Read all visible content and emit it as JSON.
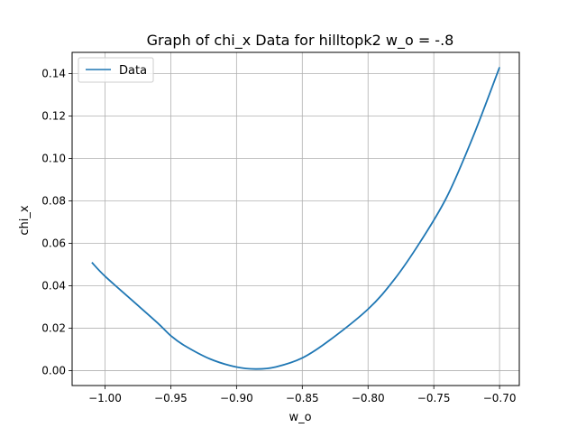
{
  "chart_data": {
    "type": "line",
    "title": "Graph of chi_x Data for hilltopk2 w_o = -.8",
    "xlabel": "w_o",
    "ylabel": "chi_x",
    "xlim": [
      -1.025,
      -0.685
    ],
    "ylim": [
      -0.007,
      0.15
    ],
    "xticks": [
      -1.0,
      -0.95,
      -0.9,
      -0.85,
      -0.8,
      -0.75,
      -0.7
    ],
    "xtick_labels": [
      "−1.00",
      "−0.95",
      "−0.90",
      "−0.85",
      "−0.80",
      "−0.75",
      "−0.70"
    ],
    "yticks": [
      0.0,
      0.02,
      0.04,
      0.06,
      0.08,
      0.1,
      0.12,
      0.14
    ],
    "ytick_labels": [
      "0.00",
      "0.02",
      "0.04",
      "0.06",
      "0.08",
      "0.10",
      "0.12",
      "0.14"
    ],
    "grid": true,
    "legend_position": "upper-left",
    "series": [
      {
        "name": "Data",
        "color": "#1f77b4",
        "x": [
          -1.01,
          -1.0,
          -0.98,
          -0.96,
          -0.95,
          -0.94,
          -0.92,
          -0.9,
          -0.885,
          -0.87,
          -0.85,
          -0.83,
          -0.8,
          -0.78,
          -0.76,
          -0.74,
          -0.72,
          -0.7
        ],
        "y": [
          0.051,
          0.0445,
          0.0335,
          0.0225,
          0.0165,
          0.012,
          0.0055,
          0.0017,
          0.0008,
          0.0018,
          0.006,
          0.014,
          0.029,
          0.043,
          0.061,
          0.082,
          0.1105,
          0.143
        ]
      }
    ]
  }
}
